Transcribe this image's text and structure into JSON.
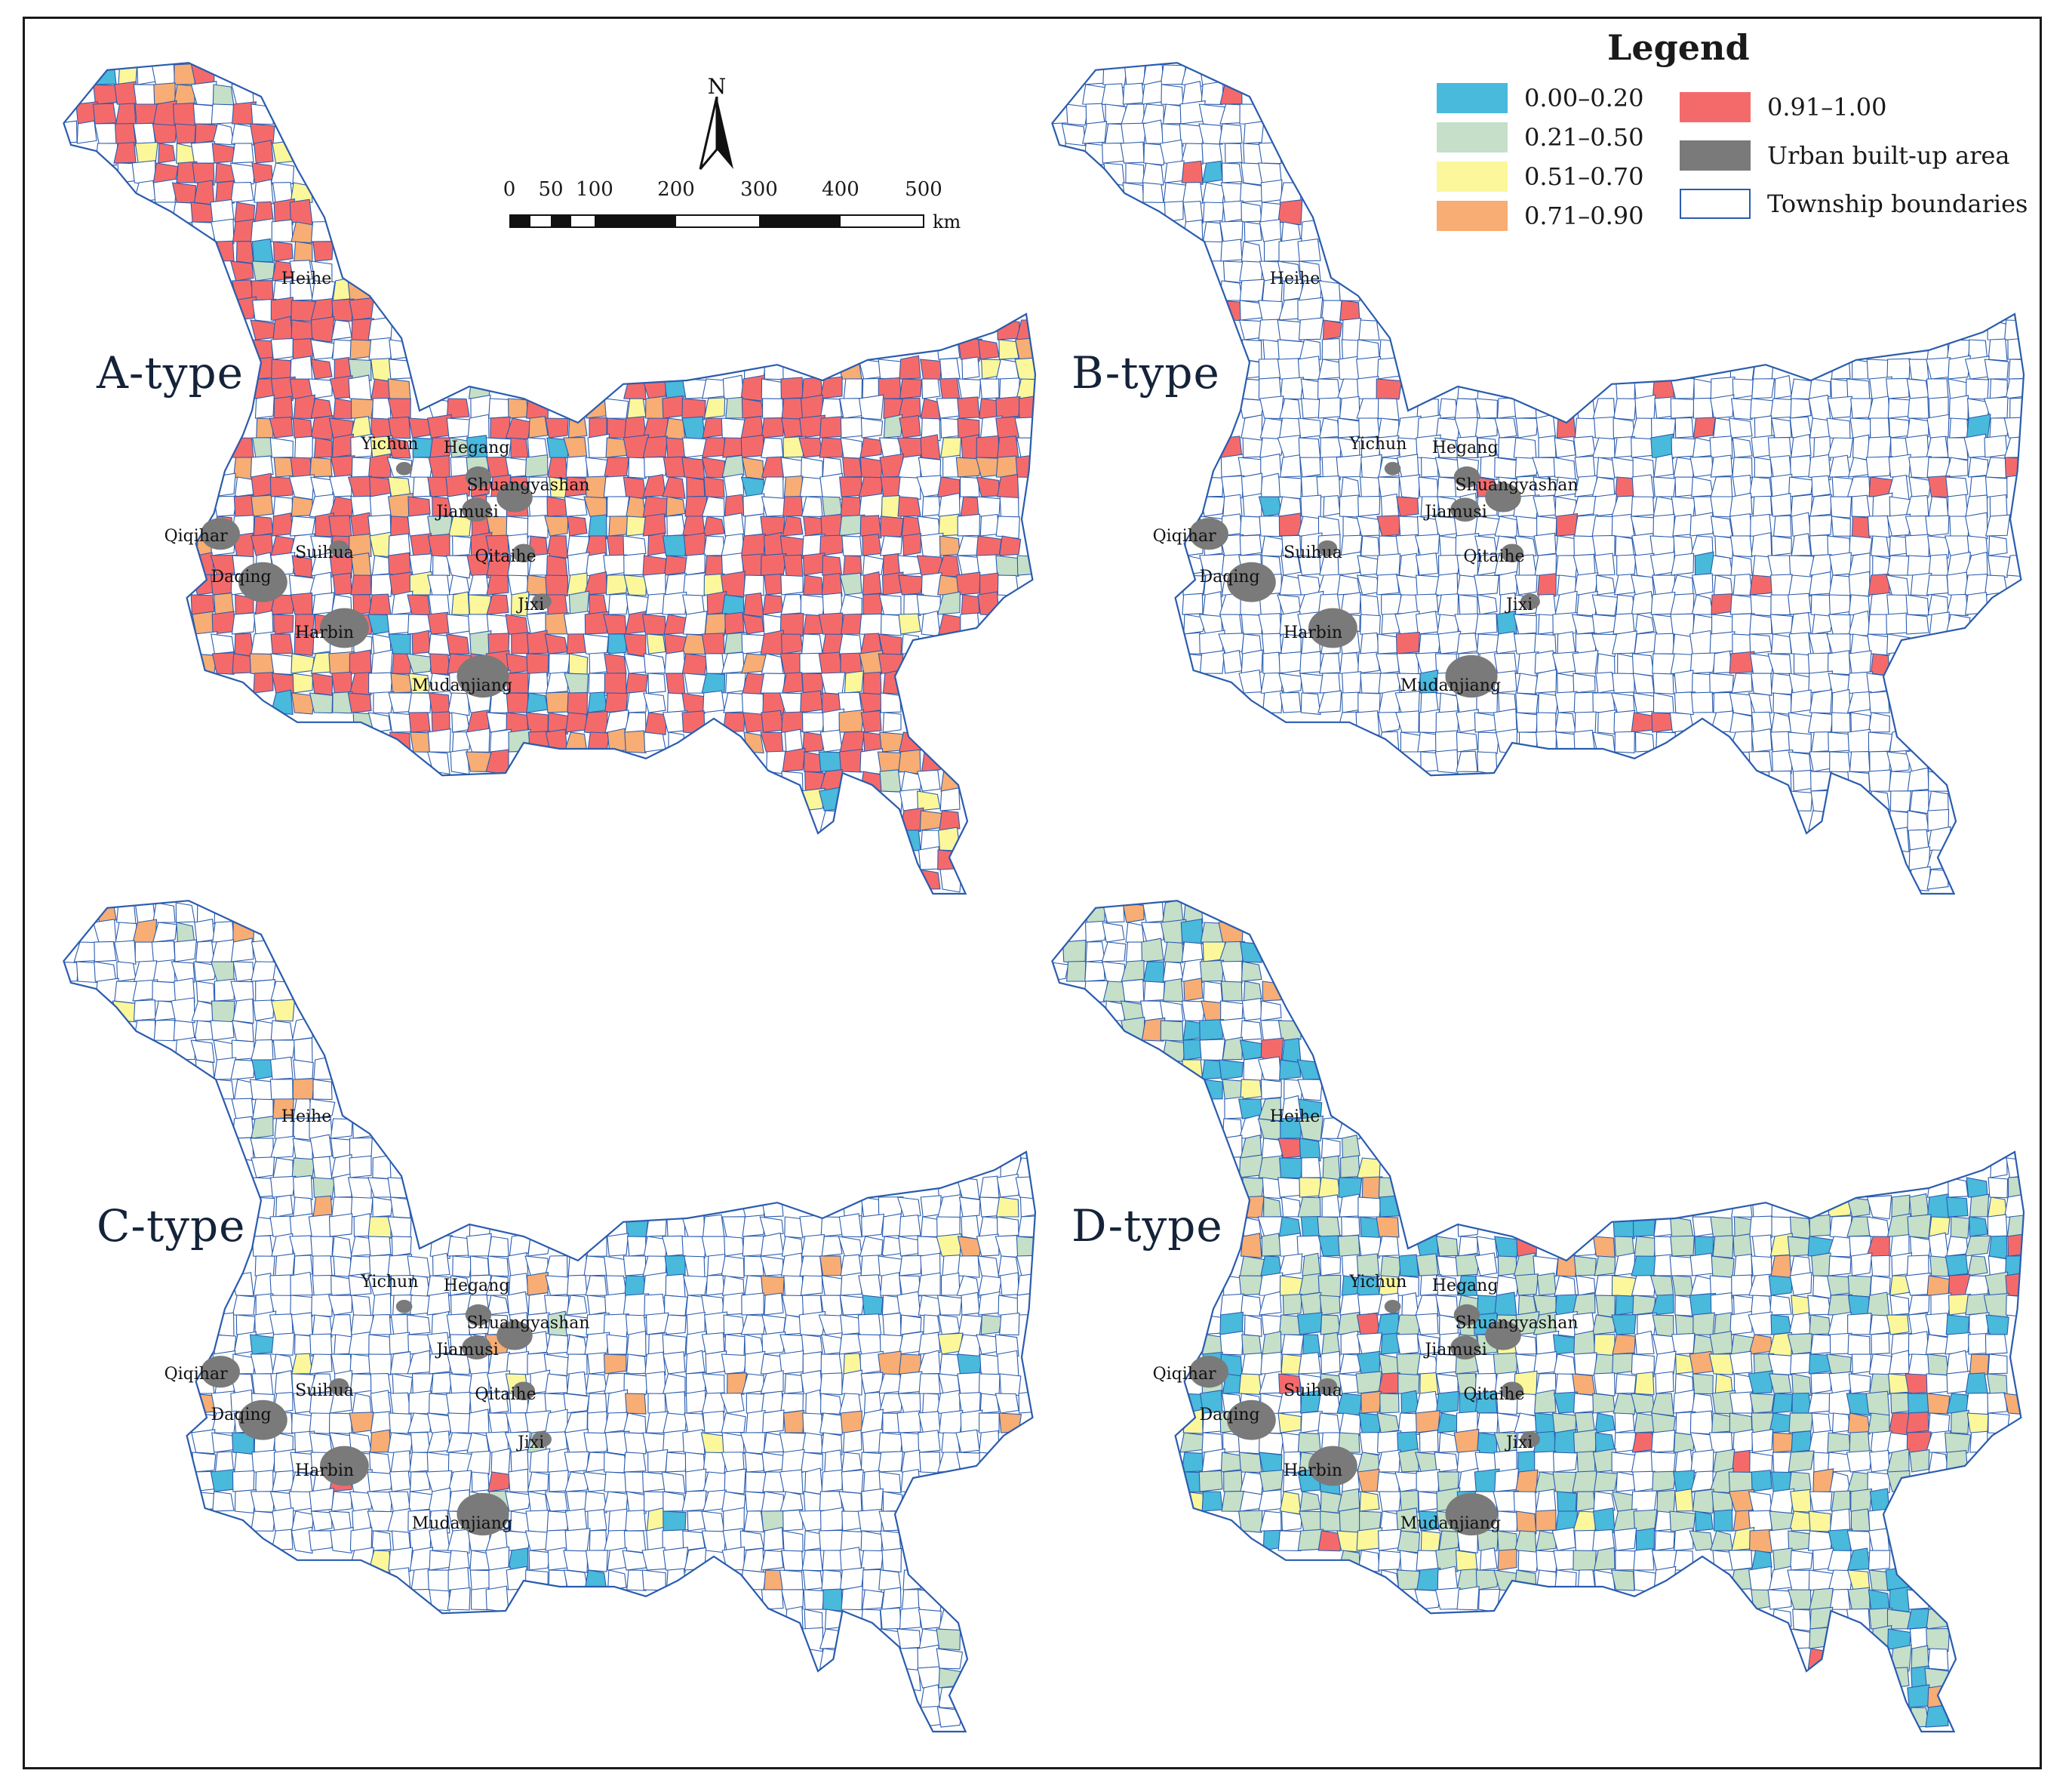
{
  "legend": {
    "title": "Legend",
    "items": [
      {
        "label": "0.00–0.20",
        "color": "#49b9dc",
        "border": "#49b9dc"
      },
      {
        "label": "0.21–0.50",
        "color": "#c5dfc8",
        "border": "#c5dfc8"
      },
      {
        "label": "0.51–0.70",
        "color": "#fbf79a",
        "border": "#fbf79a"
      },
      {
        "label": "0.71–0.90",
        "color": "#f7ad73",
        "border": "#f7ad73"
      },
      {
        "label": "0.91–1.00",
        "color": "#f46a6a",
        "border": "#f46a6a"
      },
      {
        "label": "Urban built-up area",
        "color": "#7a7a7a",
        "border": "#7a7a7a"
      },
      {
        "label": "Township boundaries",
        "color": "#ffffff",
        "border": "#2a5cae"
      }
    ]
  },
  "north_arrow": {
    "label": "N"
  },
  "scale_bar": {
    "ticks": [
      "0",
      "50",
      "100",
      "200",
      "300",
      "400",
      "500"
    ],
    "unit": "km"
  },
  "panels": [
    {
      "type_label": "A-type",
      "style": "A"
    },
    {
      "type_label": "B-type",
      "style": "B"
    },
    {
      "type_label": "C-type",
      "style": "C"
    },
    {
      "type_label": "D-type",
      "style": "D"
    }
  ],
  "cities": [
    "Heihe",
    "Yichun",
    "Hegang",
    "Shuangyashan",
    "Jiamusi",
    "Qiqihar",
    "Daqing",
    "Suihua",
    "Harbin",
    "Qitaihe",
    "Jixi",
    "Mudanjiang"
  ],
  "colors": {
    "class_0_20": "#49b9dc",
    "class_21_50": "#c5dfc8",
    "class_51_70": "#fbf79a",
    "class_71_90": "#f7ad73",
    "class_91_100": "#f46a6a",
    "urban": "#7a7a7a",
    "boundary": "#2a5cae"
  }
}
